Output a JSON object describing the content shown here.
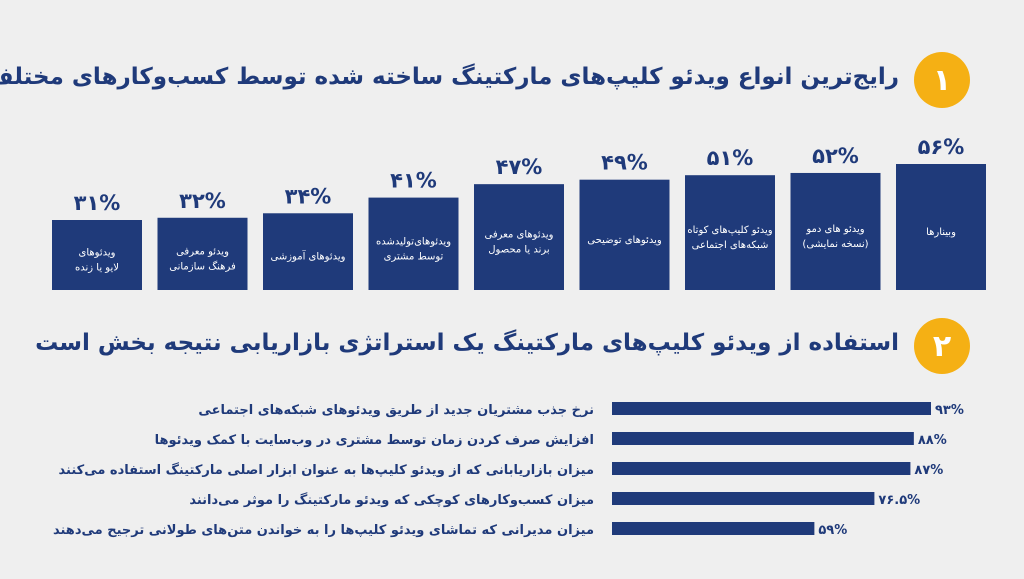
{
  "sections": [
    {
      "number": "۱",
      "title": "رایج‌ترین انواع ویدئو کلیپ‌های مارکتینگ ساخته شده توسط کسب‌وکارهای مختلف"
    },
    {
      "number": "۲",
      "title": "استفاده از ویدئو کلیپ‌های مارکتینگ یک استراتژی بازاریابی نتیجه بخش است"
    }
  ],
  "colors": {
    "bar": "#1f3a7a",
    "badge": "#f5b014",
    "background": "#efefef",
    "text": "#1f3a7a"
  },
  "chart_data": [
    {
      "type": "bar",
      "orientation": "vertical",
      "categories": [
        [
          "وبینارها"
        ],
        [
          "ویدئو های دمو",
          "(نسخه نمایشی)"
        ],
        [
          "ویدئو کلیپ‌های کوتاه",
          "شبکه‌های اجتماعی"
        ],
        [
          "ویدئوهای توضیحی"
        ],
        [
          "ویدئوهای معرفی",
          "برند یا محصول"
        ],
        [
          "ویدئوهای‌تولیدشده",
          "توسط مشتری"
        ],
        [
          "ویدئوهای آموزشی"
        ],
        [
          "ویدئو معرفی",
          "فرهنگ سازمانی"
        ],
        [
          "ویدئوهای",
          "لایو یا زنده"
        ]
      ],
      "values": [
        56,
        52,
        51,
        49,
        47,
        41,
        34,
        32,
        31
      ],
      "value_labels": [
        "۵۶%",
        "۵۲%",
        "۵۱%",
        "۴۹%",
        "۴۷%",
        "۴۱%",
        "۳۴%",
        "۳۲%",
        "۳۱%"
      ],
      "ylim": [
        0,
        56
      ]
    },
    {
      "type": "bar",
      "orientation": "horizontal",
      "categories": [
        "نرخ جذب مشتریان جدید از طریق ویدئوهای شبکه‌های اجتماعی",
        "افزایش صرف کردن زمان توسط مشتری در وب‌سایت با کمک ویدئوها",
        "میزان بازاریابانی که از ویدئو کلیپ‌ها به عنوان ابزار اصلی مارکتینگ استفاده می‌کنند",
        "میزان کسب‌وکارهای کوچکی که ویدئو مارکتینگ را موثر می‌دانند",
        "میزان مدیرانی که تماشای ویدئو کلیپ‌ها را به خواندن متن‌های طولانی ترجیح می‌دهند"
      ],
      "values": [
        93,
        88,
        87,
        76.5,
        59
      ],
      "value_labels": [
        "۹۳%",
        "۸۸%",
        "۸۷%",
        "۷۶.۵%",
        "۵۹%"
      ],
      "xlim": [
        0,
        93
      ]
    }
  ]
}
